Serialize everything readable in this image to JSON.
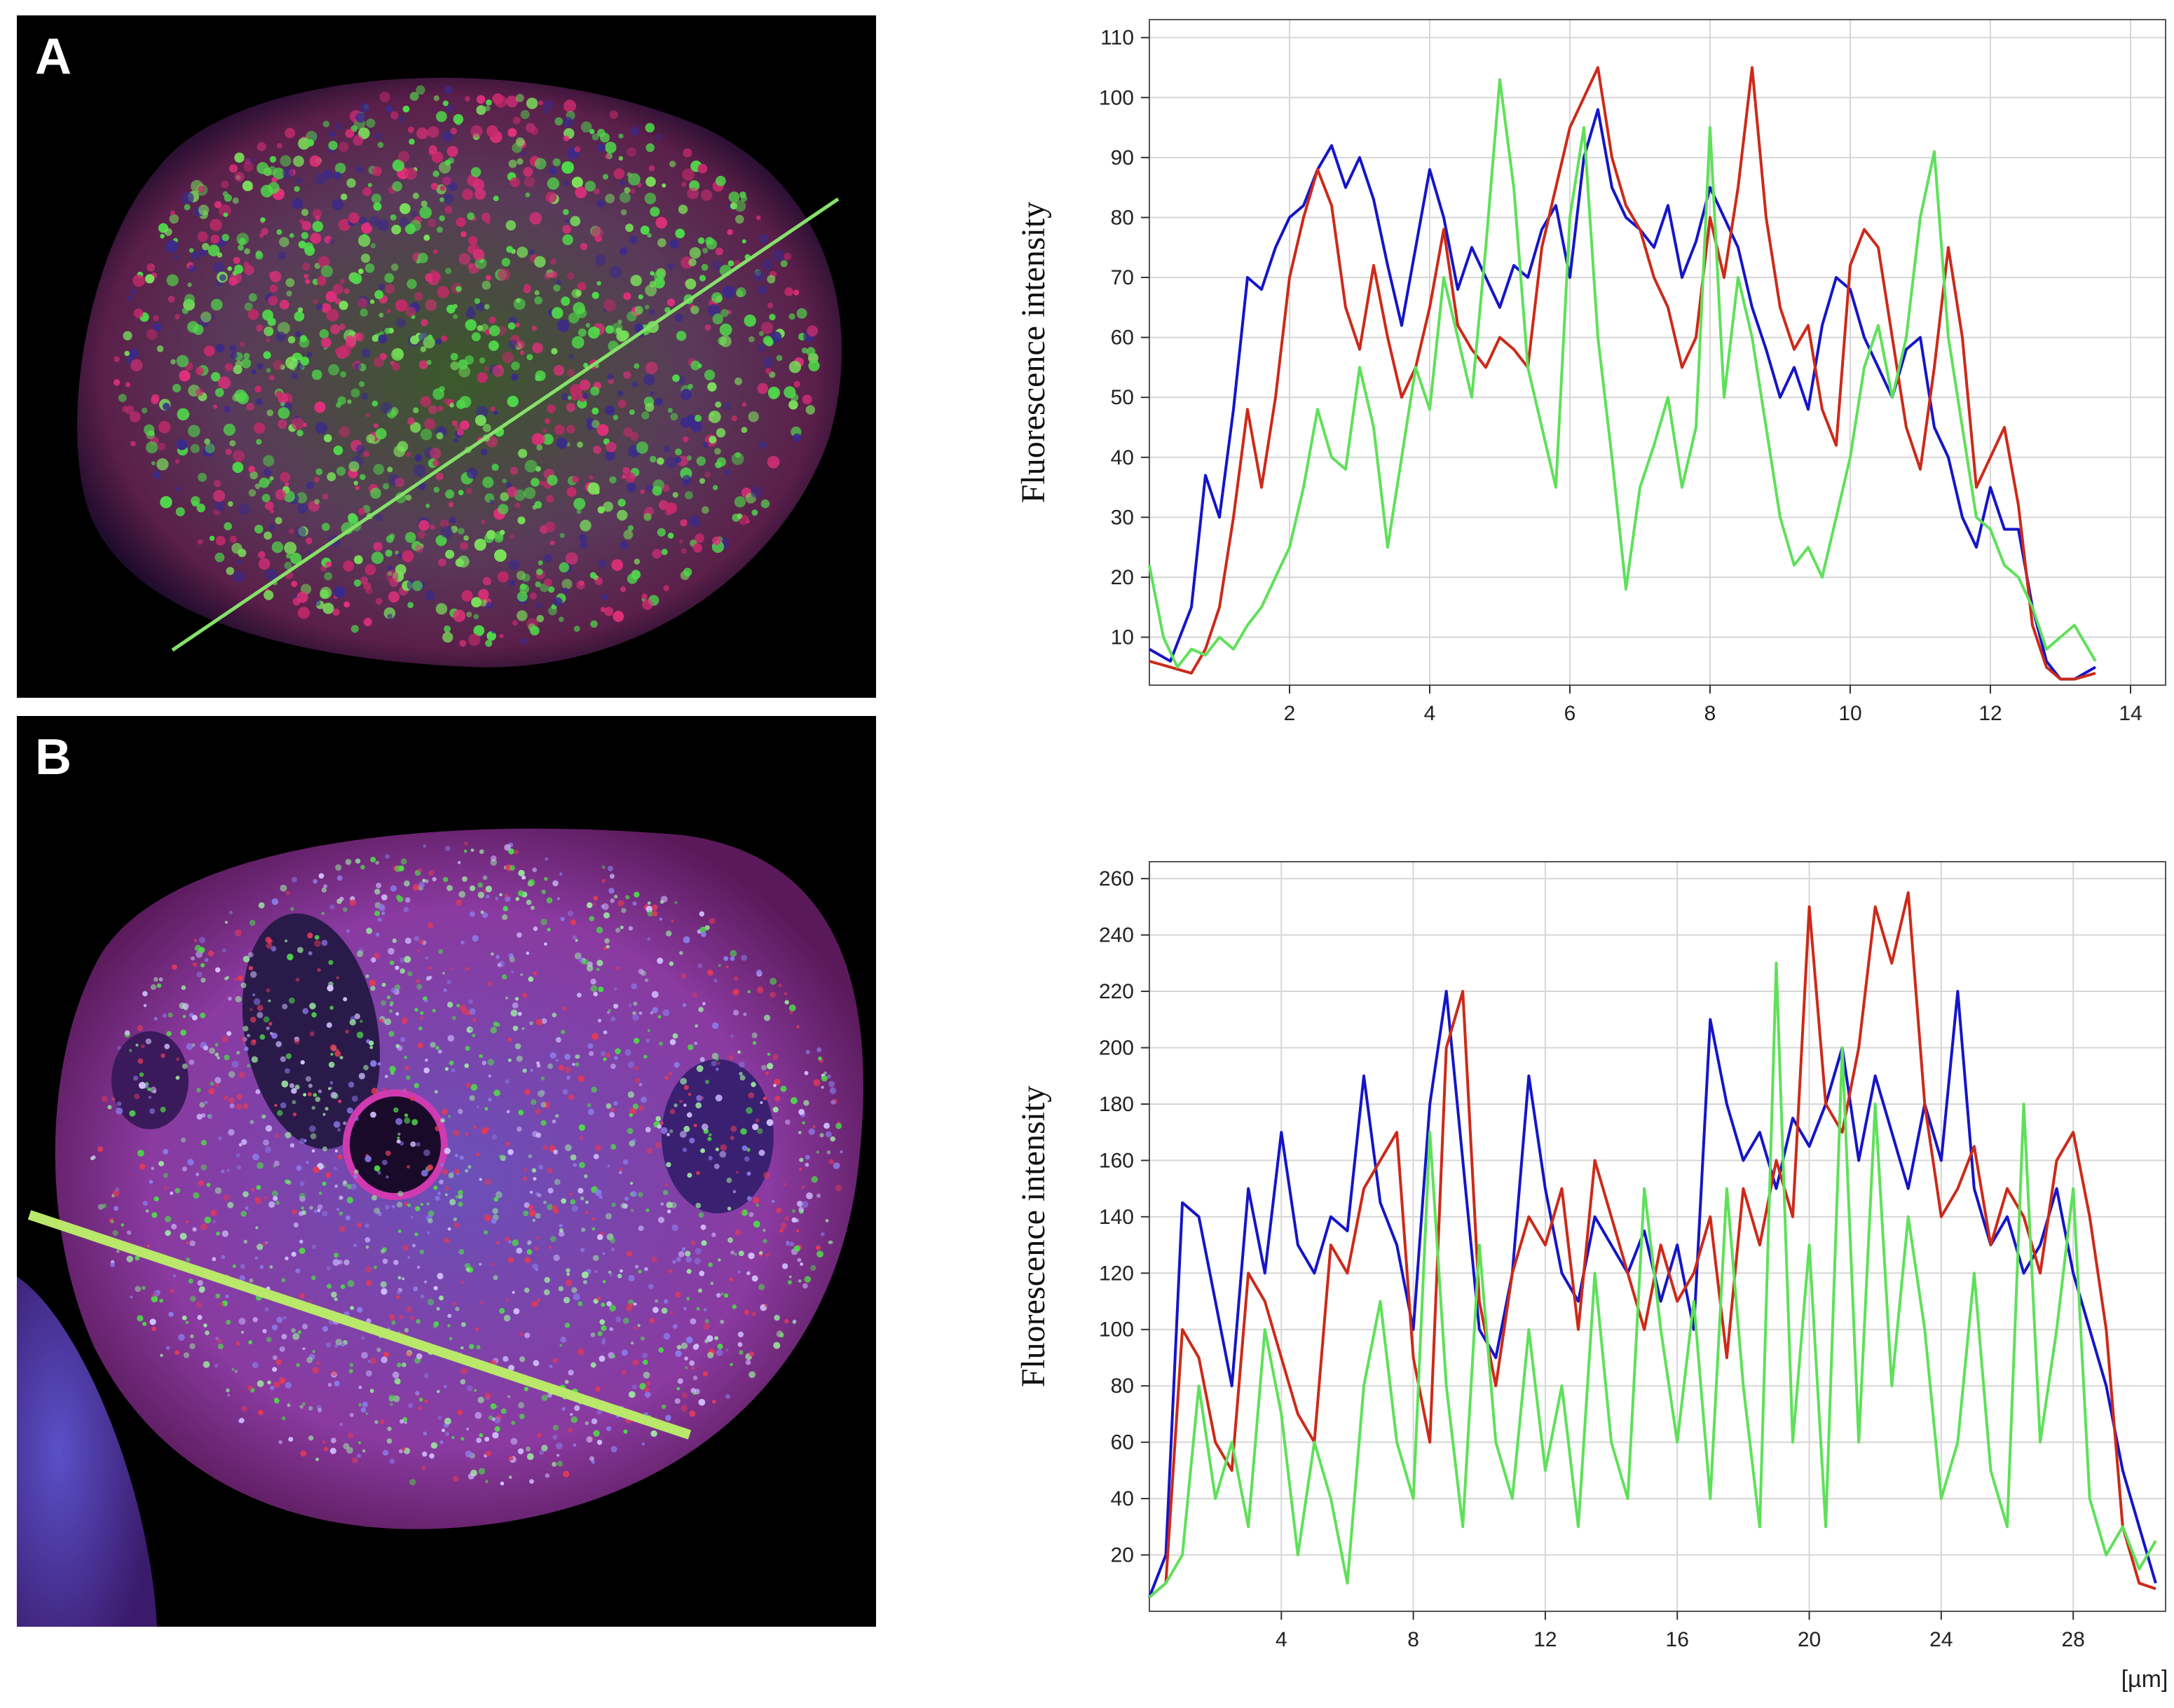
{
  "panels": [
    {
      "label": "A",
      "image_description": "Confocal image of a nucleus with a green line drawn across it"
    },
    {
      "label": "B",
      "image_description": "Confocal image of a nucleus with a yellow-green line drawn across it"
    }
  ],
  "colors": {
    "blue": "#1515c8",
    "red": "#cc2a1a",
    "green": "#5fe05a",
    "grid": "#d6d6d6",
    "line_a": "#86e06a",
    "line_b": "#b9e86a"
  },
  "chart_data": [
    {
      "type": "line",
      "title": "",
      "xlabel": "",
      "ylabel": "Fluorescence intensity",
      "xlim": [
        0,
        14.5
      ],
      "ylim": [
        2,
        113
      ],
      "xticks": [
        2,
        4,
        6,
        8,
        10,
        12,
        14
      ],
      "yticks": [
        10,
        20,
        30,
        40,
        50,
        60,
        70,
        80,
        90,
        100,
        110
      ],
      "x_unit": "",
      "series": [
        {
          "name": "blue",
          "color": "#1515c8",
          "x": [
            0,
            0.3,
            0.6,
            0.8,
            1.0,
            1.2,
            1.4,
            1.6,
            1.8,
            2.0,
            2.2,
            2.4,
            2.6,
            2.8,
            3.0,
            3.2,
            3.4,
            3.6,
            3.8,
            4.0,
            4.2,
            4.4,
            4.6,
            4.8,
            5.0,
            5.2,
            5.4,
            5.6,
            5.8,
            6.0,
            6.2,
            6.4,
            6.6,
            6.8,
            7.0,
            7.2,
            7.4,
            7.6,
            7.8,
            8.0,
            8.2,
            8.4,
            8.6,
            8.8,
            9.0,
            9.2,
            9.4,
            9.6,
            9.8,
            10.0,
            10.2,
            10.4,
            10.6,
            10.8,
            11.0,
            11.2,
            11.4,
            11.6,
            11.8,
            12.0,
            12.2,
            12.4,
            12.6,
            12.8,
            13.0,
            13.2,
            13.5
          ],
          "values": [
            8,
            6,
            15,
            37,
            30,
            48,
            70,
            68,
            75,
            80,
            82,
            88,
            92,
            85,
            90,
            83,
            72,
            62,
            75,
            88,
            80,
            68,
            75,
            70,
            65,
            72,
            70,
            78,
            82,
            70,
            90,
            98,
            85,
            80,
            78,
            75,
            82,
            70,
            76,
            85,
            80,
            75,
            65,
            58,
            50,
            55,
            48,
            62,
            70,
            68,
            60,
            55,
            50,
            58,
            60,
            45,
            40,
            30,
            25,
            35,
            28,
            28,
            15,
            6,
            3,
            3,
            5
          ]
        },
        {
          "name": "red",
          "color": "#cc2a1a",
          "x": [
            0,
            0.3,
            0.6,
            0.8,
            1.0,
            1.2,
            1.4,
            1.6,
            1.8,
            2.0,
            2.2,
            2.4,
            2.6,
            2.8,
            3.0,
            3.2,
            3.4,
            3.6,
            3.8,
            4.0,
            4.2,
            4.4,
            4.6,
            4.8,
            5.0,
            5.2,
            5.4,
            5.6,
            5.8,
            6.0,
            6.2,
            6.4,
            6.6,
            6.8,
            7.0,
            7.2,
            7.4,
            7.6,
            7.8,
            8.0,
            8.2,
            8.4,
            8.6,
            8.8,
            9.0,
            9.2,
            9.4,
            9.6,
            9.8,
            10.0,
            10.2,
            10.4,
            10.6,
            10.8,
            11.0,
            11.2,
            11.4,
            11.6,
            11.8,
            12.0,
            12.2,
            12.4,
            12.6,
            12.8,
            13.0,
            13.2,
            13.5
          ],
          "values": [
            6,
            5,
            4,
            8,
            15,
            30,
            48,
            35,
            50,
            70,
            80,
            88,
            82,
            65,
            58,
            72,
            60,
            50,
            55,
            65,
            78,
            62,
            58,
            55,
            60,
            58,
            55,
            75,
            85,
            95,
            100,
            105,
            90,
            82,
            78,
            70,
            65,
            55,
            60,
            80,
            70,
            85,
            105,
            80,
            65,
            58,
            62,
            48,
            42,
            72,
            78,
            75,
            60,
            45,
            38,
            55,
            75,
            60,
            35,
            40,
            45,
            32,
            12,
            5,
            3,
            3,
            4
          ]
        },
        {
          "name": "green",
          "color": "#5fe05a",
          "x": [
            0,
            0.2,
            0.4,
            0.6,
            0.8,
            1.0,
            1.2,
            1.4,
            1.6,
            1.8,
            2.0,
            2.2,
            2.4,
            2.6,
            2.8,
            3.0,
            3.2,
            3.4,
            3.6,
            3.8,
            4.0,
            4.2,
            4.4,
            4.6,
            4.8,
            5.0,
            5.2,
            5.4,
            5.6,
            5.8,
            6.0,
            6.2,
            6.4,
            6.6,
            6.8,
            7.0,
            7.2,
            7.4,
            7.6,
            7.8,
            8.0,
            8.2,
            8.4,
            8.6,
            8.8,
            9.0,
            9.2,
            9.4,
            9.6,
            9.8,
            10.0,
            10.2,
            10.4,
            10.6,
            10.8,
            11.0,
            11.2,
            11.4,
            11.6,
            11.8,
            12.0,
            12.2,
            12.4,
            12.6,
            12.8,
            13.0,
            13.2,
            13.4,
            13.5
          ],
          "values": [
            22,
            10,
            5,
            8,
            7,
            10,
            8,
            12,
            15,
            20,
            25,
            35,
            48,
            40,
            38,
            55,
            45,
            25,
            40,
            55,
            48,
            70,
            60,
            50,
            75,
            103,
            85,
            55,
            45,
            35,
            80,
            95,
            60,
            40,
            18,
            35,
            42,
            50,
            35,
            45,
            95,
            50,
            70,
            60,
            45,
            30,
            22,
            25,
            20,
            30,
            40,
            55,
            62,
            50,
            60,
            80,
            91,
            60,
            45,
            30,
            28,
            22,
            20,
            15,
            8,
            10,
            12,
            8,
            6
          ]
        }
      ]
    },
    {
      "type": "line",
      "title": "",
      "xlabel": "",
      "ylabel": "Fluorescence intensity",
      "xlim": [
        0,
        30.8
      ],
      "ylim": [
        0,
        266
      ],
      "xticks": [
        4,
        8,
        12,
        16,
        20,
        24,
        28
      ],
      "yticks": [
        20,
        40,
        60,
        80,
        100,
        120,
        140,
        160,
        180,
        200,
        220,
        240,
        260
      ],
      "x_unit": "[µm]",
      "series": [
        {
          "name": "blue",
          "color": "#1515c8",
          "x": [
            0,
            0.5,
            1,
            1.5,
            2,
            2.5,
            3,
            3.5,
            4,
            4.5,
            5,
            5.5,
            6,
            6.5,
            7,
            7.5,
            8,
            8.5,
            9,
            9.5,
            10,
            10.5,
            11,
            11.5,
            12,
            12.5,
            13,
            13.5,
            14,
            14.5,
            15,
            15.5,
            16,
            16.5,
            17,
            17.5,
            18,
            18.5,
            19,
            19.5,
            20,
            20.5,
            21,
            21.5,
            22,
            22.5,
            23,
            23.5,
            24,
            24.5,
            25,
            25.5,
            26,
            26.5,
            27,
            27.5,
            28,
            28.5,
            29,
            29.5,
            30,
            30.5
          ],
          "values": [
            5,
            20,
            145,
            140,
            110,
            80,
            150,
            120,
            170,
            130,
            120,
            140,
            135,
            190,
            145,
            130,
            100,
            180,
            220,
            160,
            100,
            90,
            120,
            190,
            150,
            120,
            110,
            140,
            130,
            120,
            135,
            110,
            130,
            100,
            210,
            180,
            160,
            170,
            150,
            175,
            165,
            180,
            200,
            160,
            190,
            170,
            150,
            180,
            160,
            220,
            150,
            130,
            140,
            120,
            130,
            150,
            120,
            100,
            80,
            50,
            30,
            10
          ]
        },
        {
          "name": "red",
          "color": "#cc2a1a",
          "x": [
            0,
            0.5,
            1,
            1.5,
            2,
            2.5,
            3,
            3.5,
            4,
            4.5,
            5,
            5.5,
            6,
            6.5,
            7,
            7.5,
            8,
            8.5,
            9,
            9.5,
            10,
            10.5,
            11,
            11.5,
            12,
            12.5,
            13,
            13.5,
            14,
            14.5,
            15,
            15.5,
            16,
            16.5,
            17,
            17.5,
            18,
            18.5,
            19,
            19.5,
            20,
            20.5,
            21,
            21.5,
            22,
            22.5,
            23,
            23.5,
            24,
            24.5,
            25,
            25.5,
            26,
            26.5,
            27,
            27.5,
            28,
            28.5,
            29,
            29.5,
            30,
            30.5
          ],
          "values": [
            5,
            10,
            100,
            90,
            60,
            50,
            120,
            110,
            90,
            70,
            60,
            130,
            120,
            150,
            160,
            170,
            90,
            60,
            200,
            220,
            110,
            80,
            120,
            140,
            130,
            150,
            100,
            160,
            140,
            120,
            100,
            130,
            110,
            120,
            140,
            90,
            150,
            130,
            160,
            140,
            250,
            180,
            170,
            200,
            250,
            230,
            255,
            180,
            140,
            150,
            165,
            130,
            150,
            140,
            120,
            160,
            170,
            140,
            100,
            30,
            10,
            8
          ]
        },
        {
          "name": "green",
          "color": "#5fe05a",
          "x": [
            0,
            0.5,
            1,
            1.5,
            2,
            2.5,
            3,
            3.5,
            4,
            4.5,
            5,
            5.5,
            6,
            6.5,
            7,
            7.5,
            8,
            8.5,
            9,
            9.5,
            10,
            10.5,
            11,
            11.5,
            12,
            12.5,
            13,
            13.5,
            14,
            14.5,
            15,
            15.5,
            16,
            16.5,
            17,
            17.5,
            18,
            18.5,
            19,
            19.5,
            20,
            20.5,
            21,
            21.5,
            22,
            22.5,
            23,
            23.5,
            24,
            24.5,
            25,
            25.5,
            26,
            26.5,
            27,
            27.5,
            28,
            28.5,
            29,
            29.5,
            30,
            30.5
          ],
          "values": [
            5,
            10,
            20,
            80,
            40,
            60,
            30,
            100,
            70,
            20,
            60,
            40,
            10,
            80,
            110,
            60,
            40,
            170,
            80,
            30,
            130,
            60,
            40,
            100,
            50,
            80,
            30,
            120,
            60,
            40,
            150,
            100,
            60,
            110,
            40,
            150,
            80,
            30,
            230,
            60,
            130,
            30,
            200,
            60,
            180,
            80,
            140,
            100,
            40,
            60,
            120,
            50,
            30,
            180,
            60,
            100,
            150,
            40,
            20,
            30,
            15,
            25
          ]
        }
      ]
    }
  ]
}
